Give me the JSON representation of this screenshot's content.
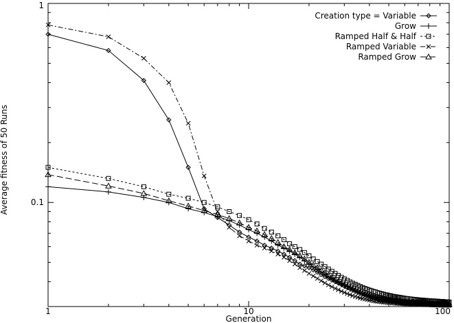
{
  "chart_data": {
    "type": "line",
    "title": "",
    "xlabel": "Generation",
    "ylabel": "Average fitness of 50 Runs",
    "x_scale": "log",
    "y_scale": "log",
    "xlim": [
      1,
      100
    ],
    "ylim": [
      0.03,
      1
    ],
    "x_ticks": [
      1,
      10,
      100
    ],
    "x_tick_labels": [
      "1",
      "10",
      "100"
    ],
    "y_ticks": [
      0.1,
      1
    ],
    "y_tick_labels": [
      "0.1",
      "1"
    ],
    "grid": false,
    "legend_position": "top-right",
    "x": [
      1,
      2,
      3,
      4,
      5,
      6,
      7,
      8,
      9,
      10,
      11,
      12,
      13,
      14,
      15,
      16,
      17,
      18,
      19,
      20,
      21,
      22,
      23,
      24,
      25,
      26,
      27,
      28,
      29,
      30,
      31,
      32,
      33,
      34,
      35,
      36,
      37,
      38,
      39,
      40,
      41,
      42,
      43,
      44,
      45,
      46,
      47,
      48,
      49,
      50,
      51,
      52,
      53,
      54,
      55,
      56,
      57,
      58,
      59,
      60,
      61,
      62,
      63,
      64,
      65,
      66,
      67,
      68,
      69,
      70,
      71,
      72,
      73,
      74,
      75,
      76,
      77,
      78,
      79,
      80,
      81,
      82,
      83,
      84,
      85,
      86,
      87,
      88,
      89,
      90,
      91,
      92,
      93,
      94,
      95,
      96,
      97,
      98,
      99,
      100
    ],
    "series": [
      {
        "name": "Creation type = Variable",
        "marker": "diamond",
        "dash": "",
        "values": [
          0.7,
          0.58,
          0.41,
          0.26,
          0.15,
          0.093,
          0.084,
          0.077,
          0.071,
          0.067,
          0.064,
          0.061,
          0.059,
          0.057,
          0.055,
          0.053,
          0.051,
          0.049,
          0.048,
          0.047,
          0.0458,
          0.0446,
          0.0434,
          0.0424,
          0.0415,
          0.0407,
          0.04,
          0.0393,
          0.0387,
          0.0381,
          0.0375,
          0.037,
          0.0365,
          0.0361,
          0.0357,
          0.0353,
          0.035,
          0.0347,
          0.0344,
          0.0341,
          0.0339,
          0.0337,
          0.0335,
          0.0333,
          0.0331,
          0.033,
          0.0328,
          0.0327,
          0.0326,
          0.0325,
          0.0324,
          0.0323,
          0.0322,
          0.0321,
          0.032,
          0.032,
          0.0319,
          0.0318,
          0.0318,
          0.0317,
          0.0317,
          0.0316,
          0.0316,
          0.0315,
          0.0315,
          0.0314,
          0.0314,
          0.0314,
          0.0313,
          0.0313,
          0.0313,
          0.0312,
          0.0312,
          0.0312,
          0.0312,
          0.0311,
          0.0311,
          0.0311,
          0.0311,
          0.031,
          0.031,
          0.031,
          0.031,
          0.031,
          0.031,
          0.0309,
          0.0309,
          0.0309,
          0.0309,
          0.0309,
          0.0309,
          0.0308,
          0.0308,
          0.0308,
          0.0308,
          0.0308,
          0.0308,
          0.0308,
          0.0307,
          0.0307
        ]
      },
      {
        "name": "Grow",
        "marker": "plus",
        "dash": "",
        "values": [
          0.12,
          0.113,
          0.106,
          0.1,
          0.093,
          0.089,
          0.085,
          0.081,
          0.077,
          0.073,
          0.07,
          0.067,
          0.064,
          0.061,
          0.059,
          0.057,
          0.055,
          0.053,
          0.051,
          0.049,
          0.0475,
          0.0461,
          0.0448,
          0.0436,
          0.0425,
          0.0415,
          0.0406,
          0.0398,
          0.039,
          0.0383,
          0.0377,
          0.0371,
          0.0366,
          0.0361,
          0.0356,
          0.0352,
          0.0348,
          0.0345,
          0.0342,
          0.0339,
          0.0337,
          0.0335,
          0.0333,
          0.0331,
          0.0329,
          0.0328,
          0.0326,
          0.0325,
          0.0324,
          0.0323,
          0.0322,
          0.0321,
          0.032,
          0.0319,
          0.0318,
          0.0318,
          0.0317,
          0.0316,
          0.0316,
          0.0315,
          0.0315,
          0.0314,
          0.0314,
          0.0313,
          0.0313,
          0.0313,
          0.0312,
          0.0312,
          0.0312,
          0.0311,
          0.0311,
          0.0311,
          0.0311,
          0.031,
          0.031,
          0.031,
          0.031,
          0.031,
          0.0309,
          0.0309,
          0.0309,
          0.0309,
          0.0309,
          0.0309,
          0.0308,
          0.0308,
          0.0308,
          0.0308,
          0.0308,
          0.0308,
          0.0308,
          0.0307,
          0.0307,
          0.0307,
          0.0307,
          0.0307,
          0.0307,
          0.0307,
          0.0307,
          0.0306
        ]
      },
      {
        "name": "Ramped Half & Half",
        "marker": "square",
        "dash": "3,3",
        "values": [
          0.15,
          0.132,
          0.12,
          0.11,
          0.105,
          0.1,
          0.095,
          0.09,
          0.086,
          0.082,
          0.078,
          0.074,
          0.071,
          0.068,
          0.065,
          0.062,
          0.06,
          0.058,
          0.056,
          0.054,
          0.052,
          0.0505,
          0.049,
          0.0476,
          0.0463,
          0.0451,
          0.044,
          0.043,
          0.0421,
          0.0413,
          0.0406,
          0.0399,
          0.0393,
          0.0388,
          0.0383,
          0.0378,
          0.0374,
          0.037,
          0.0366,
          0.0363,
          0.036,
          0.0357,
          0.0355,
          0.0352,
          0.035,
          0.0348,
          0.0346,
          0.0344,
          0.0343,
          0.0341,
          0.034,
          0.0338,
          0.0337,
          0.0336,
          0.0335,
          0.0334,
          0.0333,
          0.0332,
          0.0331,
          0.033,
          0.0329,
          0.0329,
          0.0328,
          0.0327,
          0.0327,
          0.0326,
          0.0326,
          0.0325,
          0.0325,
          0.0324,
          0.0324,
          0.0323,
          0.0323,
          0.0323,
          0.0322,
          0.0322,
          0.0322,
          0.0321,
          0.0321,
          0.0321,
          0.032,
          0.032,
          0.032,
          0.032,
          0.0319,
          0.0319,
          0.0319,
          0.0319,
          0.0318,
          0.0318,
          0.0318,
          0.0318,
          0.0318,
          0.0317,
          0.0317,
          0.0317,
          0.0317,
          0.0317,
          0.0316,
          0.0316
        ]
      },
      {
        "name": "Ramped Variable",
        "marker": "cross",
        "dash": "7,3,2,3",
        "values": [
          0.78,
          0.68,
          0.53,
          0.4,
          0.25,
          0.136,
          0.09,
          0.075,
          0.068,
          0.064,
          0.061,
          0.059,
          0.057,
          0.055,
          0.053,
          0.051,
          0.049,
          0.047,
          0.0455,
          0.044,
          0.0427,
          0.0415,
          0.0404,
          0.0394,
          0.0385,
          0.0377,
          0.037,
          0.0364,
          0.0358,
          0.0353,
          0.0348,
          0.0344,
          0.034,
          0.0337,
          0.0334,
          0.0331,
          0.0329,
          0.0327,
          0.0325,
          0.0323,
          0.0322,
          0.032,
          0.0319,
          0.0318,
          0.0317,
          0.0316,
          0.0315,
          0.0315,
          0.0314,
          0.0313,
          0.0313,
          0.0312,
          0.0312,
          0.0311,
          0.0311,
          0.0311,
          0.031,
          0.031,
          0.031,
          0.0309,
          0.0309,
          0.0309,
          0.0309,
          0.0308,
          0.0308,
          0.0308,
          0.0308,
          0.0308,
          0.0307,
          0.0307,
          0.0307,
          0.0307,
          0.0307,
          0.0307,
          0.0306,
          0.0306,
          0.0306,
          0.0306,
          0.0306,
          0.0306,
          0.0306,
          0.0305,
          0.0305,
          0.0305,
          0.0305,
          0.0305,
          0.0305,
          0.0305,
          0.0305,
          0.0305,
          0.0304,
          0.0304,
          0.0304,
          0.0304,
          0.0304,
          0.0304,
          0.0304,
          0.0304,
          0.0304,
          0.0304
        ]
      },
      {
        "name": "Ramped Grow",
        "marker": "triangle",
        "dash": "9,4",
        "values": [
          0.138,
          0.121,
          0.111,
          0.102,
          0.096,
          0.091,
          0.087,
          0.083,
          0.079,
          0.075,
          0.072,
          0.069,
          0.066,
          0.063,
          0.06,
          0.058,
          0.056,
          0.054,
          0.052,
          0.05,
          0.0485,
          0.047,
          0.0457,
          0.0444,
          0.0432,
          0.0421,
          0.0411,
          0.0402,
          0.0394,
          0.0386,
          0.0379,
          0.0373,
          0.0368,
          0.0363,
          0.0358,
          0.0354,
          0.035,
          0.0347,
          0.0344,
          0.0341,
          0.0338,
          0.0336,
          0.0334,
          0.0332,
          0.033,
          0.0328,
          0.0327,
          0.0325,
          0.0324,
          0.0323,
          0.0322,
          0.0321,
          0.032,
          0.0319,
          0.0318,
          0.0318,
          0.0317,
          0.0316,
          0.0316,
          0.0315,
          0.0315,
          0.0314,
          0.0314,
          0.0313,
          0.0313,
          0.0313,
          0.0312,
          0.0312,
          0.0312,
          0.0311,
          0.0311,
          0.0311,
          0.0311,
          0.031,
          0.031,
          0.031,
          0.031,
          0.031,
          0.031,
          0.0309,
          0.0309,
          0.0309,
          0.0309,
          0.0309,
          0.0309,
          0.0308,
          0.0308,
          0.0308,
          0.0308,
          0.0308,
          0.0308,
          0.0308,
          0.0307,
          0.0307,
          0.0307,
          0.0307,
          0.0307,
          0.0307,
          0.0307,
          0.0307
        ]
      }
    ]
  }
}
